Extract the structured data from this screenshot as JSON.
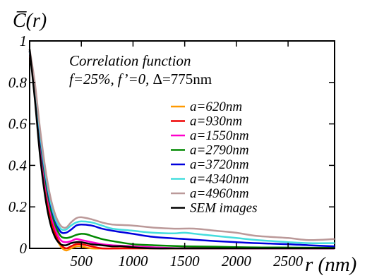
{
  "chart_data": {
    "type": "line",
    "ylabel": "C̅(r)",
    "xlabel": "r (nm)",
    "annotation": {
      "line1": "Correlation function",
      "line2_f": "f=25%,",
      "line2_fp": "f’=0,",
      "line2_delta_sym": "Δ=",
      "line2_delta_val": "775nm"
    },
    "xlim": [
      0,
      2950
    ],
    "ylim": [
      0,
      1.0
    ],
    "xticks": [
      500,
      1000,
      1500,
      2000,
      2500
    ],
    "xtick_labels": [
      "500",
      "1000",
      "1500",
      "2000",
      "2500"
    ],
    "yticks": [
      0,
      0.2,
      0.4,
      0.6,
      0.8,
      1
    ],
    "ytick_labels": [
      "0",
      "0.2",
      "0.4",
      "0.6",
      "0.8",
      "1"
    ],
    "grid": false,
    "legend_position": "right",
    "series": [
      {
        "name": "a=620nm",
        "color": "#ff9900",
        "x": [
          0,
          50,
          100,
          150,
          200,
          250,
          300,
          350,
          400,
          450,
          500,
          600,
          800,
          1200,
          2000,
          2950
        ],
        "y": [
          0.95,
          0.75,
          0.5,
          0.3,
          0.15,
          0.06,
          0.01,
          -0.01,
          0.0,
          0.01,
          0.01,
          0.0,
          0.0,
          0.0,
          0.0,
          0.0
        ]
      },
      {
        "name": "a=930nm",
        "color": "#ee0000",
        "x": [
          0,
          50,
          100,
          150,
          200,
          250,
          300,
          350,
          400,
          450,
          500,
          600,
          700,
          900,
          1200,
          2000,
          2950
        ],
        "y": [
          0.95,
          0.76,
          0.51,
          0.31,
          0.16,
          0.07,
          0.02,
          0.0,
          0.01,
          0.02,
          0.02,
          0.01,
          0.0,
          0.0,
          0.0,
          0.0,
          0.0
        ]
      },
      {
        "name": "a=1550nm",
        "color": "#ff00cc",
        "x": [
          0,
          50,
          100,
          150,
          200,
          250,
          300,
          350,
          400,
          450,
          500,
          600,
          700,
          800,
          1000,
          1200,
          1500,
          2000,
          2950
        ],
        "y": [
          0.95,
          0.77,
          0.52,
          0.32,
          0.18,
          0.09,
          0.04,
          0.03,
          0.035,
          0.045,
          0.04,
          0.03,
          0.02,
          0.015,
          0.01,
          0.005,
          0.0,
          0.0,
          0.0
        ]
      },
      {
        "name": "a=2790nm",
        "color": "#008800",
        "x": [
          0,
          50,
          100,
          150,
          200,
          250,
          300,
          350,
          400,
          450,
          500,
          550,
          600,
          700,
          800,
          1000,
          1200,
          1500,
          1800,
          2100,
          2400,
          2700,
          2950
        ],
        "y": [
          0.95,
          0.78,
          0.54,
          0.34,
          0.2,
          0.11,
          0.06,
          0.05,
          0.055,
          0.065,
          0.07,
          0.068,
          0.06,
          0.045,
          0.035,
          0.02,
          0.015,
          0.01,
          0.008,
          0.005,
          0.004,
          0.003,
          0.003
        ]
      },
      {
        "name": "a=3720nm",
        "color": "#0000dd",
        "x": [
          0,
          50,
          100,
          150,
          200,
          250,
          300,
          350,
          400,
          450,
          500,
          600,
          700,
          800,
          1000,
          1200,
          1500,
          1800,
          2000,
          2200,
          2500,
          2700,
          2950
        ],
        "y": [
          0.95,
          0.78,
          0.55,
          0.36,
          0.22,
          0.13,
          0.08,
          0.075,
          0.09,
          0.11,
          0.115,
          0.11,
          0.095,
          0.085,
          0.07,
          0.055,
          0.045,
          0.035,
          0.03,
          0.025,
          0.02,
          0.015,
          0.01
        ]
      },
      {
        "name": "a=4340nm",
        "color": "#44dddd",
        "x": [
          0,
          50,
          100,
          150,
          200,
          250,
          300,
          350,
          400,
          450,
          500,
          600,
          700,
          800,
          1000,
          1200,
          1400,
          1500,
          1700,
          2000,
          2200,
          2500,
          2700,
          2950
        ],
        "y": [
          0.95,
          0.79,
          0.56,
          0.37,
          0.23,
          0.14,
          0.095,
          0.09,
          0.11,
          0.125,
          0.13,
          0.125,
          0.11,
          0.095,
          0.085,
          0.075,
          0.072,
          0.075,
          0.065,
          0.05,
          0.04,
          0.03,
          0.025,
          0.025
        ]
      },
      {
        "name": "a=4960nm",
        "color": "#bb9999",
        "x": [
          0,
          50,
          100,
          150,
          200,
          250,
          300,
          350,
          400,
          450,
          500,
          600,
          700,
          800,
          1000,
          1200,
          1400,
          1600,
          1800,
          2000,
          2200,
          2500,
          2700,
          2950
        ],
        "y": [
          0.96,
          0.8,
          0.58,
          0.39,
          0.25,
          0.16,
          0.11,
          0.1,
          0.125,
          0.145,
          0.15,
          0.14,
          0.125,
          0.115,
          0.11,
          0.1,
          0.095,
          0.095,
          0.085,
          0.075,
          0.06,
          0.05,
          0.04,
          0.045
        ]
      },
      {
        "name": "SEM images",
        "color": "#000000",
        "x": [
          0,
          50,
          100,
          150,
          200,
          250,
          300,
          350,
          400,
          450,
          500,
          600,
          700,
          800,
          900,
          1000,
          1200,
          1500,
          2000,
          2950
        ],
        "y": [
          0.96,
          0.72,
          0.45,
          0.25,
          0.12,
          0.05,
          0.02,
          0.015,
          0.025,
          0.03,
          0.03,
          0.02,
          0.015,
          0.01,
          0.01,
          0.005,
          0.0,
          0.0,
          0.0,
          0.0
        ]
      }
    ]
  }
}
